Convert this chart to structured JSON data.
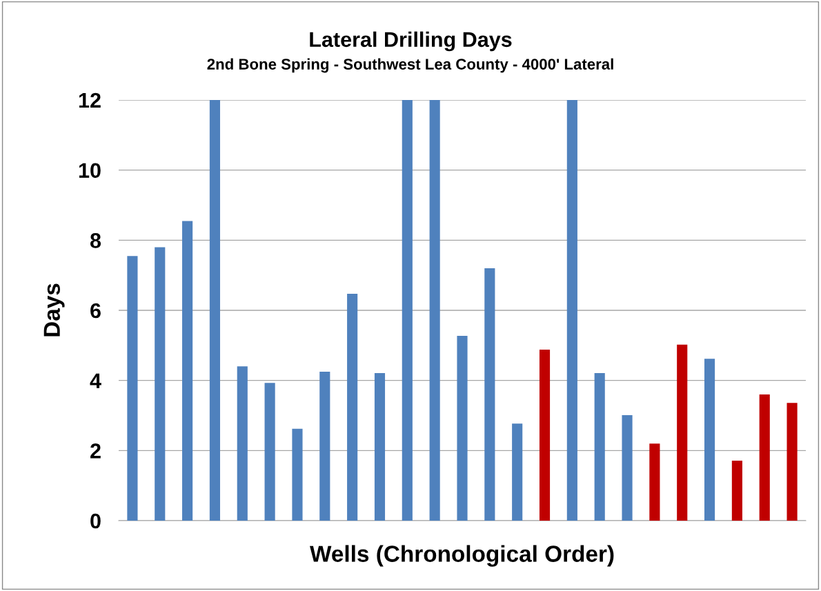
{
  "chart_data": {
    "type": "bar",
    "title": "Lateral Drilling Days",
    "subtitle": "2nd Bone Spring - Southwest Lea County - 4000' Lateral",
    "xlabel": "Wells (Chronological Order)",
    "ylabel": "Days",
    "categories": [
      null,
      null,
      null,
      null,
      null,
      null,
      null,
      null,
      null,
      null,
      null,
      null,
      null,
      null,
      null,
      null,
      null,
      null,
      null,
      null,
      null,
      null,
      null,
      null,
      null
    ],
    "values": [
      7.55,
      7.8,
      8.55,
      12,
      4.4,
      3.93,
      2.62,
      4.25,
      6.47,
      4.21,
      12,
      12,
      5.27,
      7.2,
      2.77,
      4.88,
      12,
      4.21,
      3.01,
      2.2,
      5.02,
      4.62,
      1.71,
      3.6,
      3.36
    ],
    "colors": [
      "#4f81bd",
      "#4f81bd",
      "#4f81bd",
      "#4f81bd",
      "#4f81bd",
      "#4f81bd",
      "#4f81bd",
      "#4f81bd",
      "#4f81bd",
      "#4f81bd",
      "#4f81bd",
      "#4f81bd",
      "#4f81bd",
      "#4f81bd",
      "#4f81bd",
      "#c00000",
      "#4f81bd",
      "#4f81bd",
      "#4f81bd",
      "#c00000",
      "#c00000",
      "#4f81bd",
      "#c00000",
      "#c00000",
      "#c00000"
    ],
    "ylim": [
      0,
      12
    ],
    "yticks": [
      0,
      2,
      4,
      6,
      8,
      10,
      12
    ],
    "grid": "y"
  }
}
